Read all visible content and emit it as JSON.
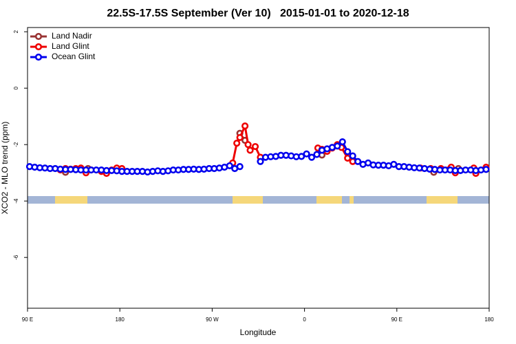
{
  "chart_data": {
    "type": "line",
    "title": "22.5S-17.5S September (Ver 10)   2015-01-01 to 2020-12-18",
    "xlabel": "Longitude",
    "ylabel": "XCO2 - MLO trend (ppm)",
    "xlim": [
      90,
      540
    ],
    "ylim": [
      -7.8,
      2.15
    ],
    "xticks": [
      {
        "value": 90,
        "label": "90 E"
      },
      180,
      {
        "value": 270,
        "label": "90 W"
      },
      {
        "value": 360,
        "label": "0"
      },
      {
        "value": 450,
        "label": "90 E"
      },
      {
        "value": 540,
        "label": "180"
      }
    ],
    "yticks": [
      2,
      0,
      -2,
      -4,
      -6
    ],
    "legend": "top-left",
    "series": [
      {
        "name": "Land Nadir",
        "color": "#993333",
        "x": [
          127,
          149,
          null,
          297,
          302,
          null,
          377,
          null,
          486,
          510
        ],
        "values": [
          -2.98,
          -2.85,
          null,
          -1.6,
          -1.85,
          null,
          -2.37,
          null,
          -2.98,
          -2.85
        ]
      },
      {
        "name": "Land Glint",
        "color": "#ee0000",
        "x": [
          122,
          127,
          132,
          137,
          142,
          147,
          152,
          162,
          167,
          172,
          177,
          182,
          null,
          290,
          294,
          297,
          302,
          305,
          307,
          312,
          317,
          null,
          373,
          377,
          382,
          387,
          392,
          396,
          402,
          407,
          null,
          473,
          483,
          493,
          503,
          507,
          525,
          527,
          537
        ],
        "values": [
          -2.9,
          -2.85,
          -2.87,
          -2.85,
          -2.83,
          -3.0,
          -2.9,
          -2.95,
          -3.02,
          -2.9,
          -2.83,
          -2.85,
          null,
          -2.65,
          -1.95,
          -1.75,
          -1.34,
          -2.0,
          -2.2,
          -2.07,
          -2.45,
          null,
          -2.12,
          -2.17,
          -2.24,
          -2.12,
          -2.0,
          -2.1,
          -2.48,
          -2.6,
          null,
          -2.83,
          -2.85,
          -2.85,
          -2.8,
          -3.0,
          -2.83,
          -3.02,
          -2.8
        ]
      },
      {
        "name": "Ocean Glint",
        "color": "#0000ee",
        "x": [
          92,
          97,
          102,
          107,
          112,
          117,
          122,
          127,
          132,
          137,
          142,
          147,
          152,
          157,
          162,
          167,
          172,
          177,
          182,
          187,
          192,
          197,
          202,
          207,
          212,
          217,
          222,
          227,
          232,
          237,
          242,
          247,
          252,
          257,
          262,
          267,
          272,
          277,
          282,
          287,
          292,
          297,
          null,
          317,
          322,
          327,
          332,
          337,
          342,
          347,
          352,
          357,
          362,
          367,
          372,
          377,
          382,
          387,
          392,
          397,
          402,
          407,
          412,
          417,
          422,
          427,
          432,
          437,
          442,
          447,
          452,
          457,
          462,
          467,
          472,
          477,
          482,
          487,
          492,
          497,
          502,
          507,
          512,
          517,
          522,
          527,
          532,
          537
        ],
        "values": [
          -2.78,
          -2.8,
          -2.82,
          -2.83,
          -2.85,
          -2.85,
          -2.87,
          -2.88,
          -2.88,
          -2.89,
          -2.9,
          -2.9,
          -2.9,
          -2.9,
          -2.9,
          -2.92,
          -2.92,
          -2.93,
          -2.95,
          -2.95,
          -2.95,
          -2.95,
          -2.95,
          -2.97,
          -2.95,
          -2.93,
          -2.95,
          -2.93,
          -2.9,
          -2.9,
          -2.88,
          -2.88,
          -2.87,
          -2.88,
          -2.87,
          -2.85,
          -2.85,
          -2.83,
          -2.8,
          -2.75,
          -2.85,
          -2.78,
          null,
          -2.6,
          -2.45,
          -2.43,
          -2.42,
          -2.38,
          -2.38,
          -2.4,
          -2.43,
          -2.42,
          -2.33,
          -2.45,
          -2.35,
          -2.2,
          -2.15,
          -2.1,
          -2.05,
          -1.9,
          -2.25,
          -2.4,
          -2.6,
          -2.7,
          -2.65,
          -2.72,
          -2.73,
          -2.73,
          -2.75,
          -2.7,
          -2.78,
          -2.78,
          -2.8,
          -2.82,
          -2.83,
          -2.85,
          -2.87,
          -2.88,
          -2.9,
          -2.9,
          -2.9,
          -2.92,
          -2.92,
          -2.9,
          -2.9,
          -2.92,
          -2.9,
          -2.88
        ]
      }
    ]
  }
}
